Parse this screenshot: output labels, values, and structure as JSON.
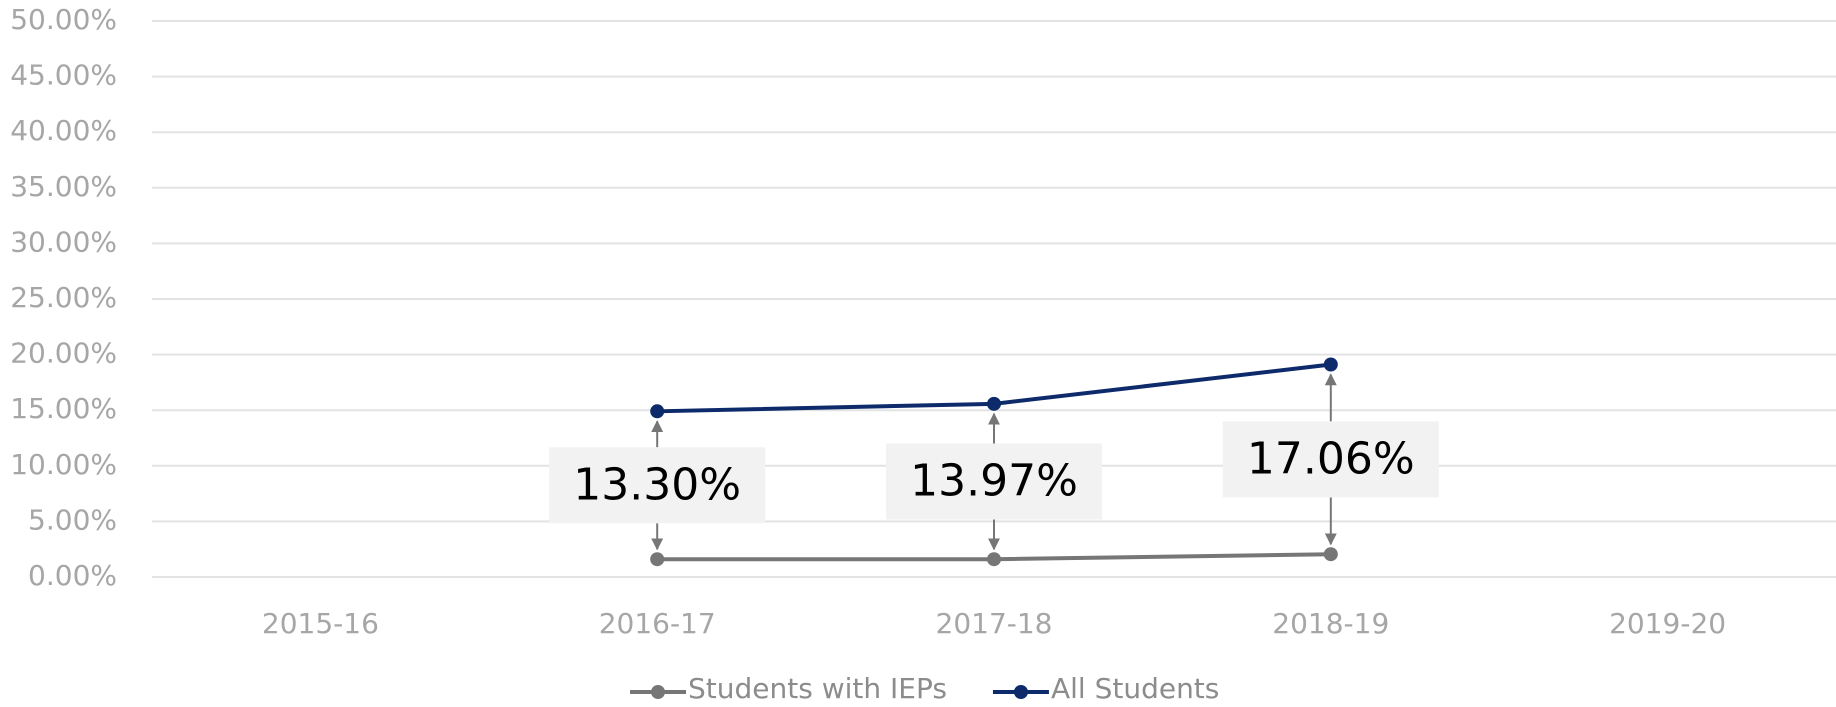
{
  "chart_data": {
    "type": "line",
    "categories": [
      "2015-16",
      "2016-17",
      "2017-18",
      "2018-19",
      "2019-20"
    ],
    "series": [
      {
        "name": "Students with IEPs",
        "color": "#767676",
        "values": [
          null,
          1.6,
          1.6,
          2.05,
          null
        ]
      },
      {
        "name": "All Students",
        "color": "#0d2b6b",
        "values": [
          null,
          14.9,
          15.57,
          19.11,
          null
        ]
      }
    ],
    "annotations": [
      {
        "value": 13.3,
        "label": "13.30%"
      },
      {
        "value": 13.97,
        "label": "13.97%"
      },
      {
        "value": 17.06,
        "label": "17.06%"
      }
    ],
    "ylim": [
      0,
      50
    ],
    "yticks": [
      {
        "value": 0,
        "label": "0.00%"
      },
      {
        "value": 5,
        "label": "5.00%"
      },
      {
        "value": 10,
        "label": "10.00%"
      },
      {
        "value": 15,
        "label": "15.00%"
      },
      {
        "value": 20,
        "label": "20.00%"
      },
      {
        "value": 25,
        "label": "25.00%"
      },
      {
        "value": 30,
        "label": "30.00%"
      },
      {
        "value": 35,
        "label": "35.00%"
      },
      {
        "value": 40,
        "label": "40.00%"
      },
      {
        "value": 45,
        "label": "45.00%"
      },
      {
        "value": 50,
        "label": "50.00%"
      }
    ],
    "grid": true,
    "legend": "bottom"
  }
}
